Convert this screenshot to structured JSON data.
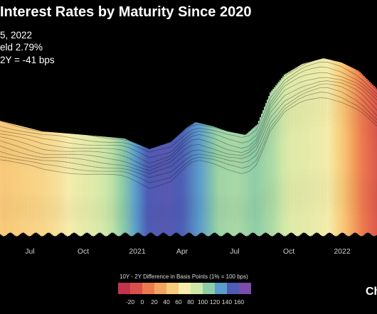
{
  "chart_data": {
    "type": "area",
    "title": "Interest Rates by Maturity Since 2020",
    "annotation": {
      "date": "5, 2022",
      "yield": "eld 2.79%",
      "spread": "2Y = -41 bps"
    },
    "x_tick_labels": [
      "Jul",
      "Oct",
      "2021",
      "Apr",
      "Jul",
      "Oct",
      "2022"
    ],
    "color_scale": {
      "title": "10Y - 2Y Difference in Basis Points (1% = 100 bps)",
      "ticks": [
        -20,
        0,
        20,
        40,
        60,
        80,
        100,
        120,
        140,
        160
      ],
      "colors": [
        "#c2334e",
        "#d9504a",
        "#ec7a4e",
        "#f4a45e",
        "#f8cc7c",
        "#f6ecab",
        "#cfe8a7",
        "#8fcda6",
        "#5b9dcb",
        "#4d5cb4",
        "#7a4ea8"
      ]
    },
    "series": [
      {
        "x": "2020-06",
        "spread_bps": 55
      },
      {
        "x": "2020-07",
        "spread_bps": 48
      },
      {
        "x": "2020-08",
        "spread_bps": 52
      },
      {
        "x": "2020-09",
        "spread_bps": 55
      },
      {
        "x": "2020-10",
        "spread_bps": 62
      },
      {
        "x": "2020-11",
        "spread_bps": 75
      },
      {
        "x": "2020-12",
        "spread_bps": 82
      },
      {
        "x": "2021-01",
        "spread_bps": 95
      },
      {
        "x": "2021-02",
        "spread_bps": 120
      },
      {
        "x": "2021-03",
        "spread_bps": 150
      },
      {
        "x": "2021-04",
        "spread_bps": 155
      },
      {
        "x": "2021-05",
        "spread_bps": 148
      },
      {
        "x": "2021-06",
        "spread_bps": 128
      },
      {
        "x": "2021-07",
        "spread_bps": 105
      },
      {
        "x": "2021-08",
        "spread_bps": 102
      },
      {
        "x": "2021-09",
        "spread_bps": 110
      },
      {
        "x": "2021-10",
        "spread_bps": 100
      },
      {
        "x": "2021-11",
        "spread_bps": 82
      },
      {
        "x": "2021-12",
        "spread_bps": 78
      },
      {
        "x": "2022-01",
        "spread_bps": 72
      },
      {
        "x": "2022-02",
        "spread_bps": 45
      },
      {
        "x": "2022-03",
        "spread_bps": 10
      },
      {
        "x": "2022-04",
        "spread_bps": -10
      }
    ]
  },
  "brand": "Ch"
}
